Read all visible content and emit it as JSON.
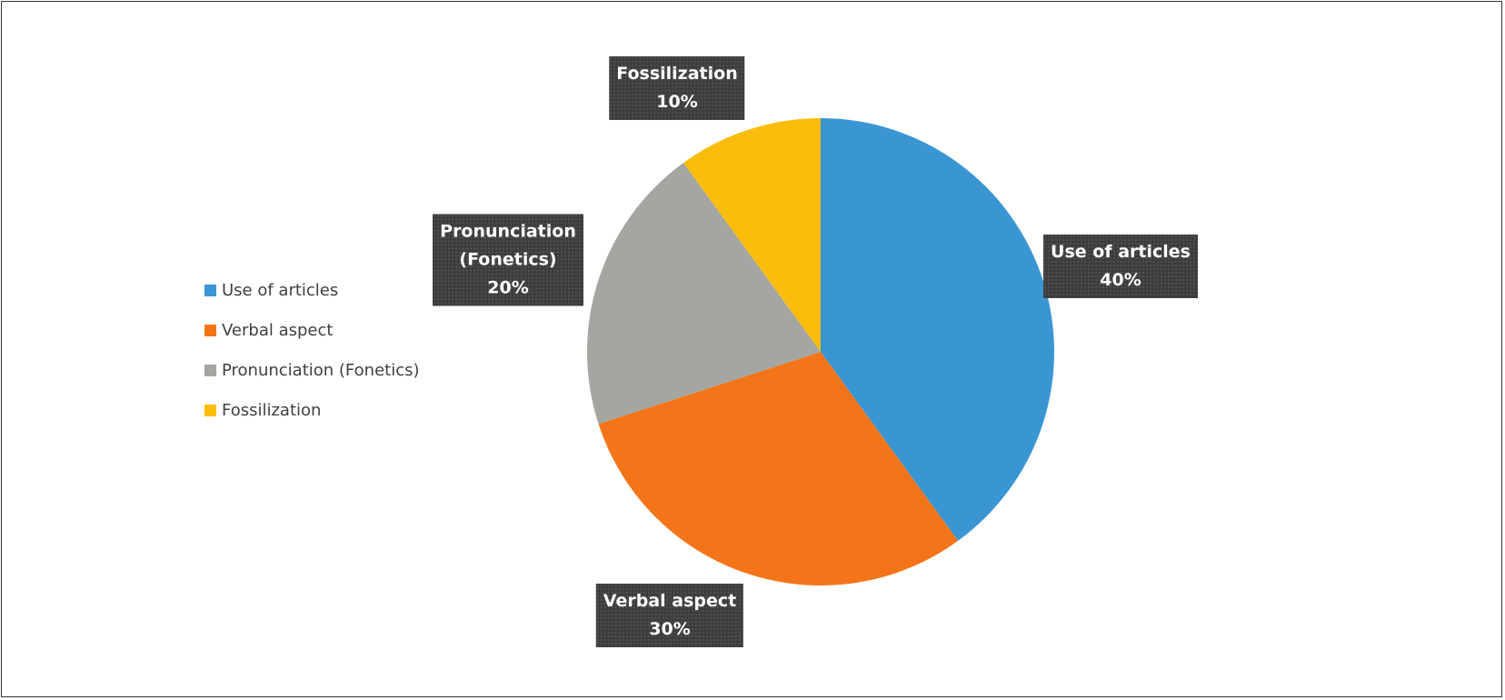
{
  "chart_data": {
    "type": "pie",
    "categories": [
      "Use of articles",
      "Verbal aspect",
      "Pronunciation (Fonetics)",
      "Fossilization"
    ],
    "values": [
      40,
      30,
      20,
      10
    ],
    "value_labels": [
      "40%",
      "30%",
      "20%",
      "10%"
    ],
    "colors": [
      "#3a96d3",
      "#f47519",
      "#a5a5a1",
      "#fbbd0b"
    ],
    "legend": "left"
  }
}
